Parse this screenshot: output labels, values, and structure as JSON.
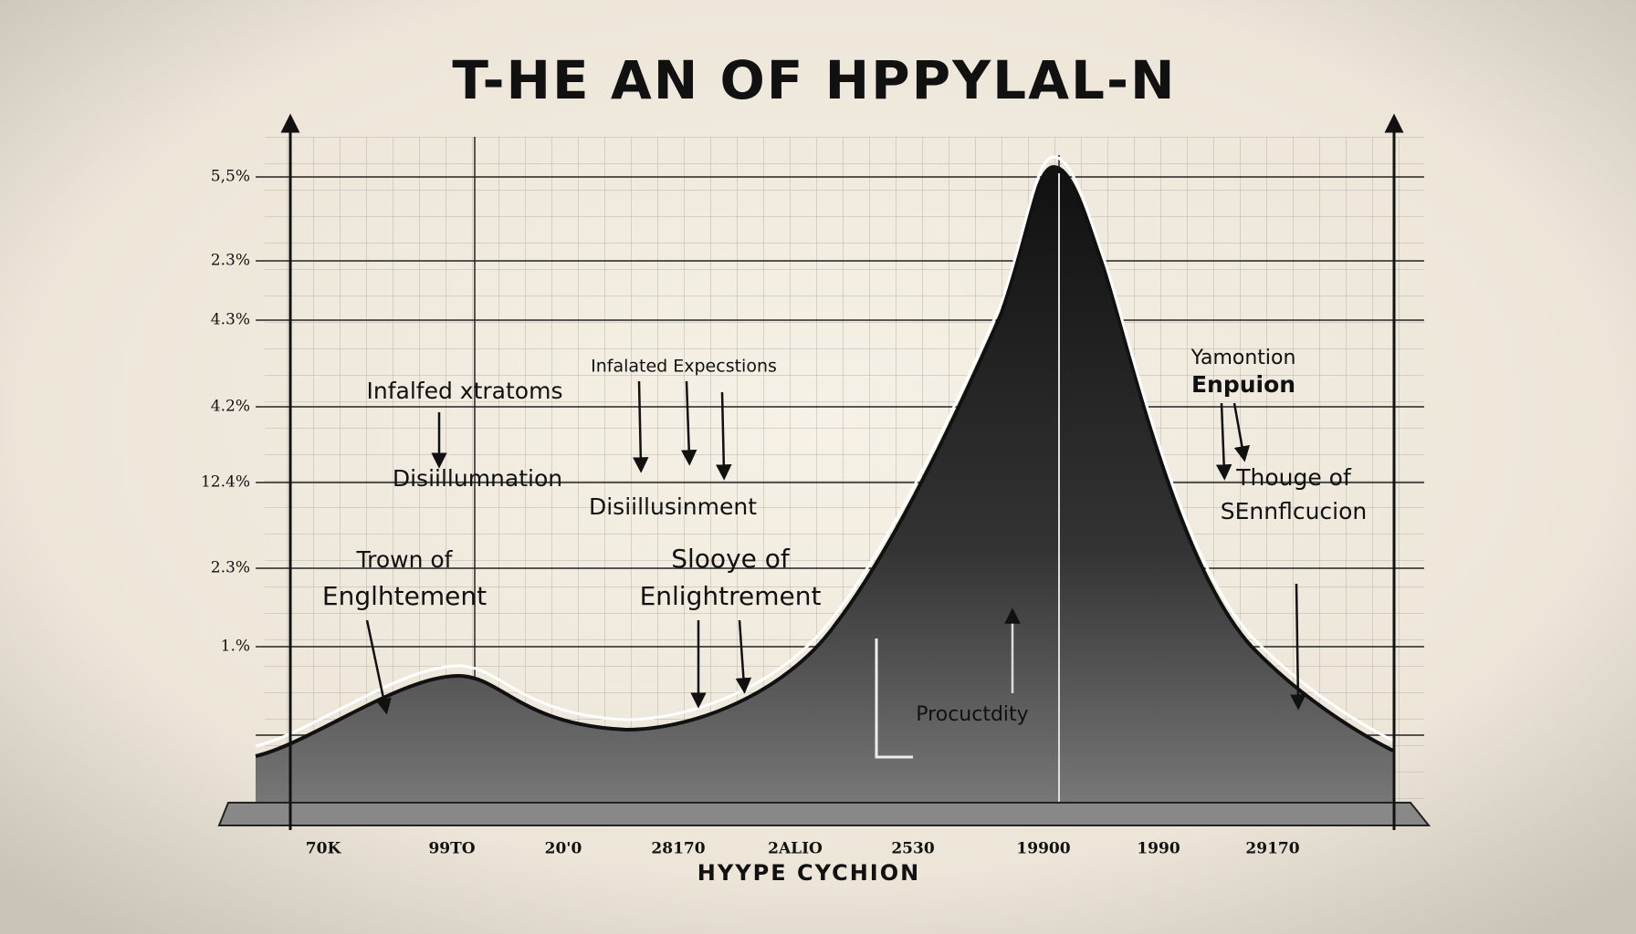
{
  "title": "T-HE AN OF HPPYLAL-N",
  "y_labels": [
    "5,5%",
    "2.3%",
    "4.3%",
    "4.2%",
    "12.4%",
    "2.3%",
    "1.%"
  ],
  "x_labels": [
    "70K",
    "99TO",
    "20'0",
    "28170",
    "2ALIO",
    "2530",
    "19900",
    "1990",
    "29170"
  ],
  "x_axis_title": "HYYPE CYCHION",
  "annotations": [
    {
      "text": "Infalfed xtratoms"
    },
    {
      "text": "Infalated Expecstions"
    },
    {
      "text": "Disiillumnation"
    },
    {
      "text": "Disiillusinment"
    },
    {
      "lines": [
        "Trown of",
        "Englhtement"
      ]
    },
    {
      "lines": [
        "Slooye of",
        "Enlightrement"
      ]
    },
    {
      "lines": [
        "Yamontion",
        "Enpuion"
      ]
    },
    {
      "lines": [
        "Thouge of",
        "SEnnflcucion"
      ]
    },
    {
      "text": "Procuctdity"
    }
  ]
}
